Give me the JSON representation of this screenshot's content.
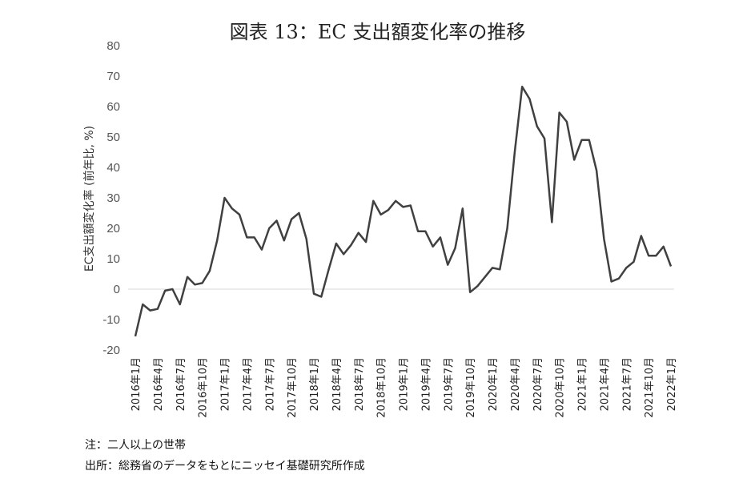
{
  "chart_data": {
    "type": "line",
    "title": "図表 13：EC 支出額変化率の推移",
    "ylabel": "EC支出額変化率 (前年比, %)",
    "xlabel": "",
    "ylim": [
      -20,
      80
    ],
    "yticks": [
      "80",
      "70",
      "60",
      "50",
      "40",
      "30",
      "20",
      "10",
      "0",
      "-10",
      "-20"
    ],
    "grid": false,
    "legend": "none",
    "x_tick_labels": [
      "2016年1月",
      "2016年4月",
      "2016年7月",
      "2016年10月",
      "2017年1月",
      "2017年4月",
      "2017年7月",
      "2017年10月",
      "2018年1月",
      "2018年4月",
      "2018年7月",
      "2018年10月",
      "2019年1月",
      "2019年4月",
      "2019年7月",
      "2019年10月",
      "2020年1月",
      "2020年4月",
      "2020年7月",
      "2020年10月",
      "2021年1月",
      "2021年4月",
      "2021年7月",
      "2021年10月",
      "2022年1月"
    ],
    "x": [
      "2016-01",
      "2016-02",
      "2016-03",
      "2016-04",
      "2016-05",
      "2016-06",
      "2016-07",
      "2016-08",
      "2016-09",
      "2016-10",
      "2016-11",
      "2016-12",
      "2017-01",
      "2017-02",
      "2017-03",
      "2017-04",
      "2017-05",
      "2017-06",
      "2017-07",
      "2017-08",
      "2017-09",
      "2017-10",
      "2017-11",
      "2017-12",
      "2018-01",
      "2018-02",
      "2018-03",
      "2018-04",
      "2018-05",
      "2018-06",
      "2018-07",
      "2018-08",
      "2018-09",
      "2018-10",
      "2018-11",
      "2018-12",
      "2019-01",
      "2019-02",
      "2019-03",
      "2019-04",
      "2019-05",
      "2019-06",
      "2019-07",
      "2019-08",
      "2019-09",
      "2019-10",
      "2019-11",
      "2019-12",
      "2020-01",
      "2020-02",
      "2020-03",
      "2020-04",
      "2020-05",
      "2020-06",
      "2020-07",
      "2020-08",
      "2020-09",
      "2020-10",
      "2020-11",
      "2020-12",
      "2021-01",
      "2021-02",
      "2021-03",
      "2021-04",
      "2021-05",
      "2021-06",
      "2021-07",
      "2021-08",
      "2021-09",
      "2021-10",
      "2021-11",
      "2021-12",
      "2022-01"
    ],
    "series": [
      {
        "color": "#404040",
        "values": [
          -15.5,
          -5,
          -7,
          -6.5,
          -0.5,
          0,
          -5,
          4,
          1.5,
          2,
          6,
          16,
          30,
          26.5,
          24.5,
          17,
          17,
          13,
          20,
          22.5,
          16,
          23,
          25,
          16.5,
          -1.5,
          -2.5,
          6.5,
          15,
          11.5,
          14.5,
          18.5,
          15.5,
          29,
          24.5,
          26,
          29,
          27,
          27.5,
          19,
          19,
          14,
          17,
          8,
          13.5,
          26.5,
          -1,
          1,
          4,
          7,
          6.5,
          20,
          45,
          66.5,
          62.5,
          53.5,
          49.5,
          22,
          58,
          55,
          42.5,
          49,
          49,
          39,
          16.5,
          2.5,
          3.5,
          7,
          9,
          17.5,
          11,
          11,
          14,
          7.5
        ]
      }
    ]
  },
  "notes": {
    "note1": "注：二人以上の世帯",
    "note2": "出所：総務省のデータをもとにニッセイ基礎研究所作成"
  },
  "colors": {
    "line": "#404040",
    "axis": "#d9d9d9"
  }
}
